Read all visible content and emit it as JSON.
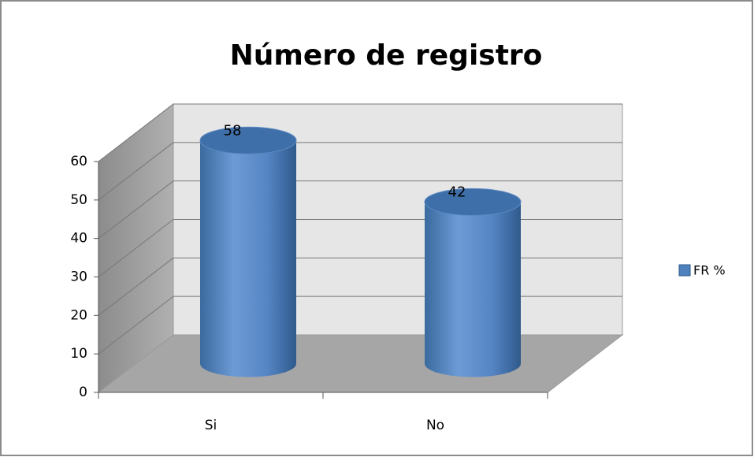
{
  "chart_data": {
    "type": "bar",
    "title": "Número de registro",
    "categories": [
      "Si",
      "No"
    ],
    "series": [
      {
        "name": "FR %",
        "color": "#4f81bd",
        "values": [
          58,
          42
        ]
      }
    ],
    "ylim": [
      0,
      60
    ],
    "yticks": [
      0,
      10,
      20,
      30,
      40,
      50,
      60
    ],
    "grid": true,
    "legend": "right"
  }
}
